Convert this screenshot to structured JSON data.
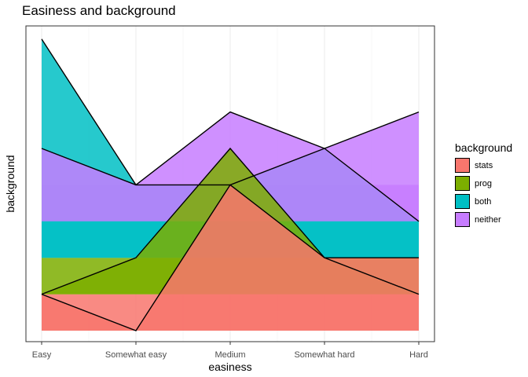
{
  "chart_data": {
    "type": "area",
    "title": "Easiness and background",
    "xlabel": "easiness",
    "ylabel": "background",
    "categories": [
      "Easy",
      "Somewhat easy",
      "Medium",
      "Somewhat hard",
      "Hard"
    ],
    "ylim": [
      0,
      8.5
    ],
    "grid": true,
    "y_tick_labels": false,
    "legend": {
      "title": "background",
      "position": "right"
    },
    "series": [
      {
        "name": "stats",
        "color": "#F8766D",
        "values": [
          1,
          0,
          4,
          2,
          2
        ]
      },
      {
        "name": "prog",
        "color": "#7CAE00",
        "values": [
          1,
          2,
          5,
          2,
          1
        ]
      },
      {
        "name": "both",
        "color": "#00BFC4",
        "values": [
          8,
          4,
          4,
          5,
          3
        ]
      },
      {
        "name": "neither",
        "color": "#C77CFF",
        "values": [
          5,
          4,
          6,
          5,
          6
        ]
      }
    ],
    "bands": [
      {
        "series": "stats",
        "base": 0
      },
      {
        "series": "prog",
        "base": 1
      },
      {
        "series": "both",
        "base": 2
      },
      {
        "series": "neither",
        "base": 3
      }
    ]
  }
}
